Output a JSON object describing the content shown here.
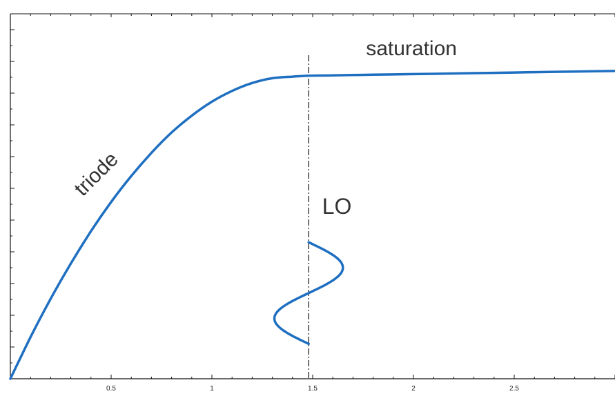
{
  "chart_data": {
    "type": "line",
    "title": "",
    "xlabel": "",
    "ylabel": "",
    "xlim": [
      0,
      3.0
    ],
    "ylim": [
      0,
      1.15
    ],
    "x_tick_labels": [
      "0.5",
      "1",
      "1.5",
      "2",
      "2.5"
    ],
    "x_ticks": [
      0.5,
      1,
      1.5,
      2,
      2.5
    ],
    "y_tick_labels_shown": false,
    "grid": false,
    "legend": "none",
    "colors": {
      "curve": "#1f6fc1",
      "vline": "#111111"
    },
    "series": [
      {
        "x": [
          0.0,
          0.1,
          0.2,
          0.3,
          0.4,
          0.5,
          0.6,
          0.7,
          0.8,
          0.9,
          1.0,
          1.1,
          1.2,
          1.3,
          1.4,
          1.48,
          1.6,
          1.8,
          2.0,
          2.2,
          2.4,
          2.6,
          2.8,
          3.0
        ],
        "y": [
          0.0,
          0.131,
          0.252,
          0.363,
          0.465,
          0.557,
          0.639,
          0.712,
          0.776,
          0.829,
          0.873,
          0.907,
          0.932,
          0.947,
          0.952,
          0.955,
          0.956,
          0.958,
          0.96,
          0.962,
          0.964,
          0.966,
          0.968,
          0.97
        ]
      }
    ],
    "boundary": {
      "x": 1.48,
      "style": "dash-dot"
    },
    "lo_signal": {
      "center_x": 1.48,
      "amplitude": 0.17,
      "y_top": 0.43,
      "y_bottom": 0.11
    },
    "annotations": [
      {
        "text": "triode",
        "x": 0.45,
        "y": 0.63,
        "rotation": -45
      },
      {
        "text": "saturation",
        "x": 1.99,
        "y": 1.02
      },
      {
        "text": "LO",
        "x": 1.62,
        "y": 0.52
      }
    ]
  }
}
